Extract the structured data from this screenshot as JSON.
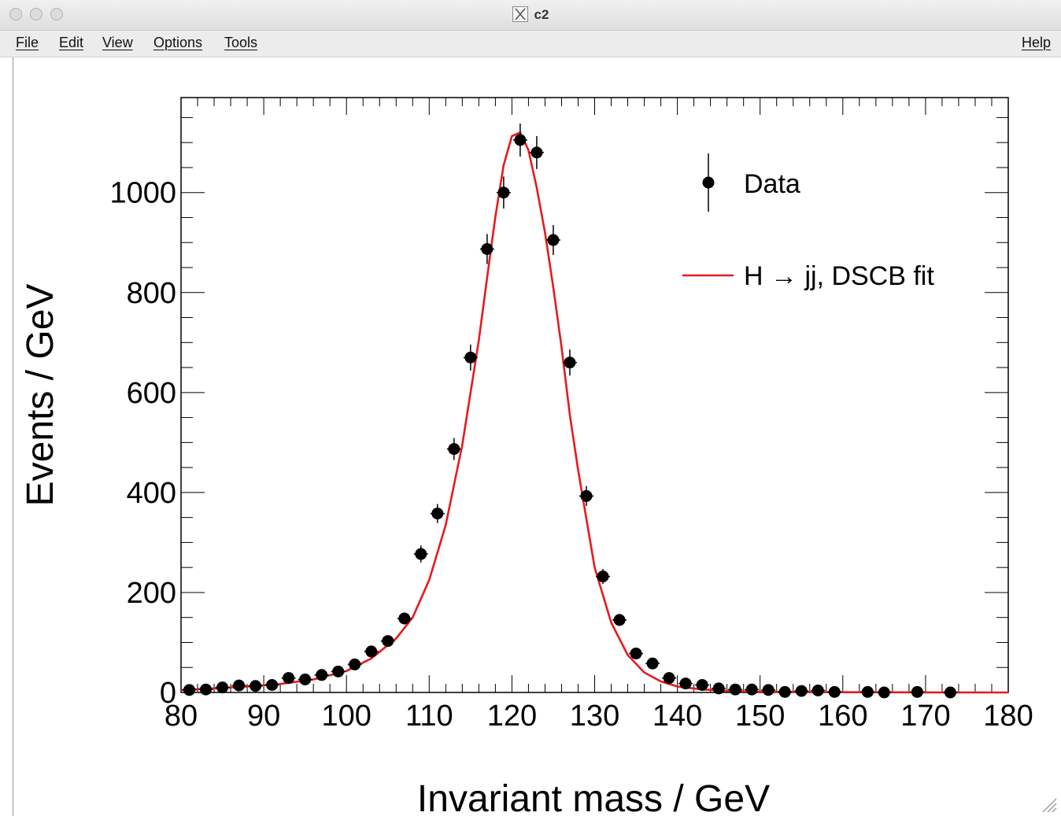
{
  "window": {
    "title": "c2",
    "app_icon": "x11-icon"
  },
  "menubar": {
    "items": [
      "File",
      "Edit",
      "View",
      "Options",
      "Tools"
    ],
    "help": "Help"
  },
  "chart_data": {
    "type": "scatter",
    "title": "",
    "xlabel": "Invariant mass / GeV",
    "ylabel": "Events / GeV",
    "xlim": [
      80,
      180
    ],
    "ylim": [
      0,
      1190
    ],
    "xticks": [
      80,
      90,
      100,
      110,
      120,
      130,
      140,
      150,
      160,
      170,
      180
    ],
    "yticks": [
      0,
      200,
      400,
      600,
      800,
      1000
    ],
    "grid": false,
    "legend_position": "top-right",
    "series": [
      {
        "name": "Data",
        "style": "points with error bars",
        "color": "#000000",
        "x": [
          81,
          83,
          85,
          87,
          89,
          91,
          93,
          95,
          97,
          99,
          101,
          103,
          105,
          107,
          109,
          111,
          113,
          115,
          117,
          119,
          121,
          123,
          125,
          127,
          129,
          131,
          133,
          135,
          137,
          139,
          141,
          143,
          145,
          147,
          149,
          151,
          153,
          155,
          157,
          159,
          163,
          165,
          169,
          173
        ],
        "y": [
          5,
          6,
          10,
          14,
          13,
          15,
          29,
          26,
          35,
          42,
          56,
          82,
          103,
          148,
          277,
          358,
          487,
          670,
          887,
          1000,
          1105,
          1080,
          905,
          660,
          393,
          232,
          145,
          78,
          58,
          29,
          18,
          15,
          8,
          6,
          6,
          5,
          1,
          3,
          4,
          1,
          1,
          0,
          1,
          0
        ],
        "errors": [
          2,
          2,
          3,
          4,
          4,
          4,
          5,
          5,
          6,
          6,
          7,
          9,
          10,
          12,
          17,
          19,
          22,
          26,
          30,
          32,
          33,
          33,
          30,
          26,
          20,
          15,
          12,
          9,
          8,
          5,
          4,
          4,
          3,
          2,
          2,
          2,
          1,
          2,
          2,
          1,
          1,
          0,
          1,
          0
        ]
      },
      {
        "name": "H → jj, DSCB fit",
        "style": "line",
        "color": "#e8191e",
        "x": [
          80,
          84,
          88,
          92,
          96,
          100,
          103,
          106,
          108,
          110,
          112,
          114,
          116,
          117,
          118,
          119,
          120,
          121,
          122,
          123,
          124,
          125,
          126,
          127,
          128,
          130,
          132,
          134,
          136,
          138,
          140,
          143,
          146,
          150,
          155,
          160,
          170,
          180
        ],
        "y": [
          5,
          8,
          12,
          17,
          26,
          43,
          68,
          108,
          150,
          225,
          335,
          495,
          705,
          830,
          952,
          1055,
          1113,
          1120,
          1085,
          1010,
          920,
          810,
          690,
          555,
          445,
          250,
          140,
          75,
          40,
          22,
          12,
          6,
          3,
          1.5,
          0.8,
          0.4,
          0.1,
          0
        ]
      }
    ]
  }
}
